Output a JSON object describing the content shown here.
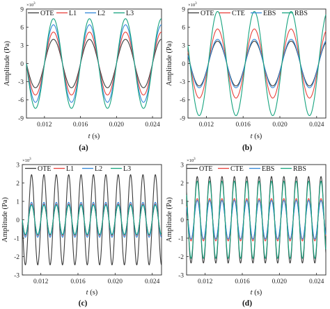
{
  "figure": {
    "colors": {
      "OTE": "#3a3a3a",
      "L1": "#e8403a",
      "L2": "#2f86d8",
      "L3": "#16a37e",
      "CTE": "#e8403a",
      "EBS": "#2f86d8",
      "RBS": "#16a37e"
    }
  },
  "chart_data": [
    {
      "id": "a",
      "type": "line",
      "panel_label": "(a)",
      "exponent_label": "×10",
      "exponent_power": "3",
      "ylabel": "Amplitude (Pa)",
      "xlabel_var": "t",
      "xlabel_unit": " (s)",
      "xlim": [
        0.01,
        0.025
      ],
      "ylim": [
        -9,
        9
      ],
      "yticks": [
        -9,
        -6,
        -3,
        0,
        3,
        6,
        9
      ],
      "xticks": [
        0.012,
        0.016,
        0.02,
        0.024
      ],
      "xtick_labels": [
        "0.012",
        "0.016",
        "0.020",
        "0.024"
      ],
      "ytick_labels": [
        "-9",
        "-6",
        "-3",
        "0",
        "3",
        "6",
        "9"
      ],
      "legend": [
        "OTE",
        "L1",
        "L2",
        "L3"
      ],
      "series": [
        {
          "name": "OTE",
          "amplitude": 4.0,
          "frequency_hz": 250,
          "phase_deg": 0
        },
        {
          "name": "L1",
          "amplitude": 5.2,
          "frequency_hz": 250,
          "phase_deg": 0
        },
        {
          "name": "L2",
          "amplitude": 6.4,
          "frequency_hz": 250,
          "phase_deg": 0
        },
        {
          "name": "L3",
          "amplitude": 7.4,
          "frequency_hz": 250,
          "phase_deg": 0
        }
      ]
    },
    {
      "id": "b",
      "type": "line",
      "panel_label": "(b)",
      "exponent_label": "×10",
      "exponent_power": "3",
      "ylabel": "Amplitude (Pa)",
      "xlabel_var": "t",
      "xlabel_unit": " (s)",
      "xlim": [
        0.01,
        0.025
      ],
      "ylim": [
        -9,
        9
      ],
      "yticks": [
        -9,
        -6,
        -3,
        0,
        3,
        6,
        9
      ],
      "xticks": [
        0.012,
        0.016,
        0.02,
        0.024
      ],
      "xtick_labels": [
        "0.012",
        "0.016",
        "0.020",
        "0.024"
      ],
      "ytick_labels": [
        "-9",
        "-6",
        "-3",
        "0",
        "3",
        "6",
        "9"
      ],
      "legend": [
        "OTE",
        "CTE",
        "EBS",
        "RBS"
      ],
      "series": [
        {
          "name": "OTE",
          "amplitude": 3.7,
          "frequency_hz": 250,
          "phase_deg": -20
        },
        {
          "name": "CTE",
          "amplitude": 5.7,
          "frequency_hz": 250,
          "phase_deg": -20
        },
        {
          "name": "EBS",
          "amplitude": 4.0,
          "frequency_hz": 250,
          "phase_deg": -20
        },
        {
          "name": "RBS",
          "amplitude": 8.6,
          "frequency_hz": 250,
          "phase_deg": -20
        }
      ]
    },
    {
      "id": "c",
      "type": "line",
      "panel_label": "(c)",
      "exponent_label": "×10",
      "exponent_power": "3",
      "ylabel": "Amplitude (Pa)",
      "xlabel_var": "t",
      "xlabel_unit": " (s)",
      "xlim": [
        0.01,
        0.025
      ],
      "ylim": [
        -3,
        3
      ],
      "yticks": [
        -3,
        -2,
        -1,
        0,
        1,
        2,
        3
      ],
      "xticks": [
        0.012,
        0.016,
        0.02,
        0.024
      ],
      "xtick_labels": [
        "0.012",
        "0.016",
        "0.020",
        "0.024"
      ],
      "ytick_labels": [
        "-3",
        "-2",
        "-1",
        "0",
        "1",
        "2",
        "3"
      ],
      "legend": [
        "OTE",
        "L1",
        "L2",
        "L3"
      ],
      "series": [
        {
          "name": "OTE",
          "amplitude": 2.45,
          "frequency_hz": 750,
          "phase_deg": 0
        },
        {
          "name": "L1",
          "amplitude": 0.85,
          "frequency_hz": 750,
          "phase_deg": 0
        },
        {
          "name": "L2",
          "amplitude": 0.95,
          "frequency_hz": 750,
          "phase_deg": 0
        },
        {
          "name": "L3",
          "amplitude": 0.8,
          "frequency_hz": 750,
          "phase_deg": 0
        }
      ]
    },
    {
      "id": "d",
      "type": "line",
      "panel_label": "(d)",
      "exponent_label": "×10",
      "exponent_power": "3",
      "ylabel": "Amplitude (Pa)",
      "xlabel_var": "t",
      "xlabel_unit": " (s)",
      "xlim": [
        0.01,
        0.025
      ],
      "ylim": [
        -3,
        3
      ],
      "yticks": [
        -3,
        -2,
        -1,
        0,
        1,
        2,
        3
      ],
      "xticks": [
        0.012,
        0.016,
        0.02,
        0.024
      ],
      "xtick_labels": [
        "0.012",
        "0.016",
        "0.020",
        "0.024"
      ],
      "ytick_labels": [
        "-3",
        "-2",
        "-1",
        "0",
        "1",
        "2",
        "3"
      ],
      "legend": [
        "OTE",
        "CTE",
        "EBS",
        "RBS"
      ],
      "series": [
        {
          "name": "OTE",
          "amplitude": 2.35,
          "frequency_hz": 750,
          "phase_deg": -40
        },
        {
          "name": "CTE",
          "amplitude": 1.15,
          "frequency_hz": 750,
          "phase_deg": -40
        },
        {
          "name": "EBS",
          "amplitude": 1.05,
          "frequency_hz": 750,
          "phase_deg": -40
        },
        {
          "name": "RBS",
          "amplitude": 2.1,
          "frequency_hz": 750,
          "phase_deg": -40
        }
      ]
    }
  ]
}
